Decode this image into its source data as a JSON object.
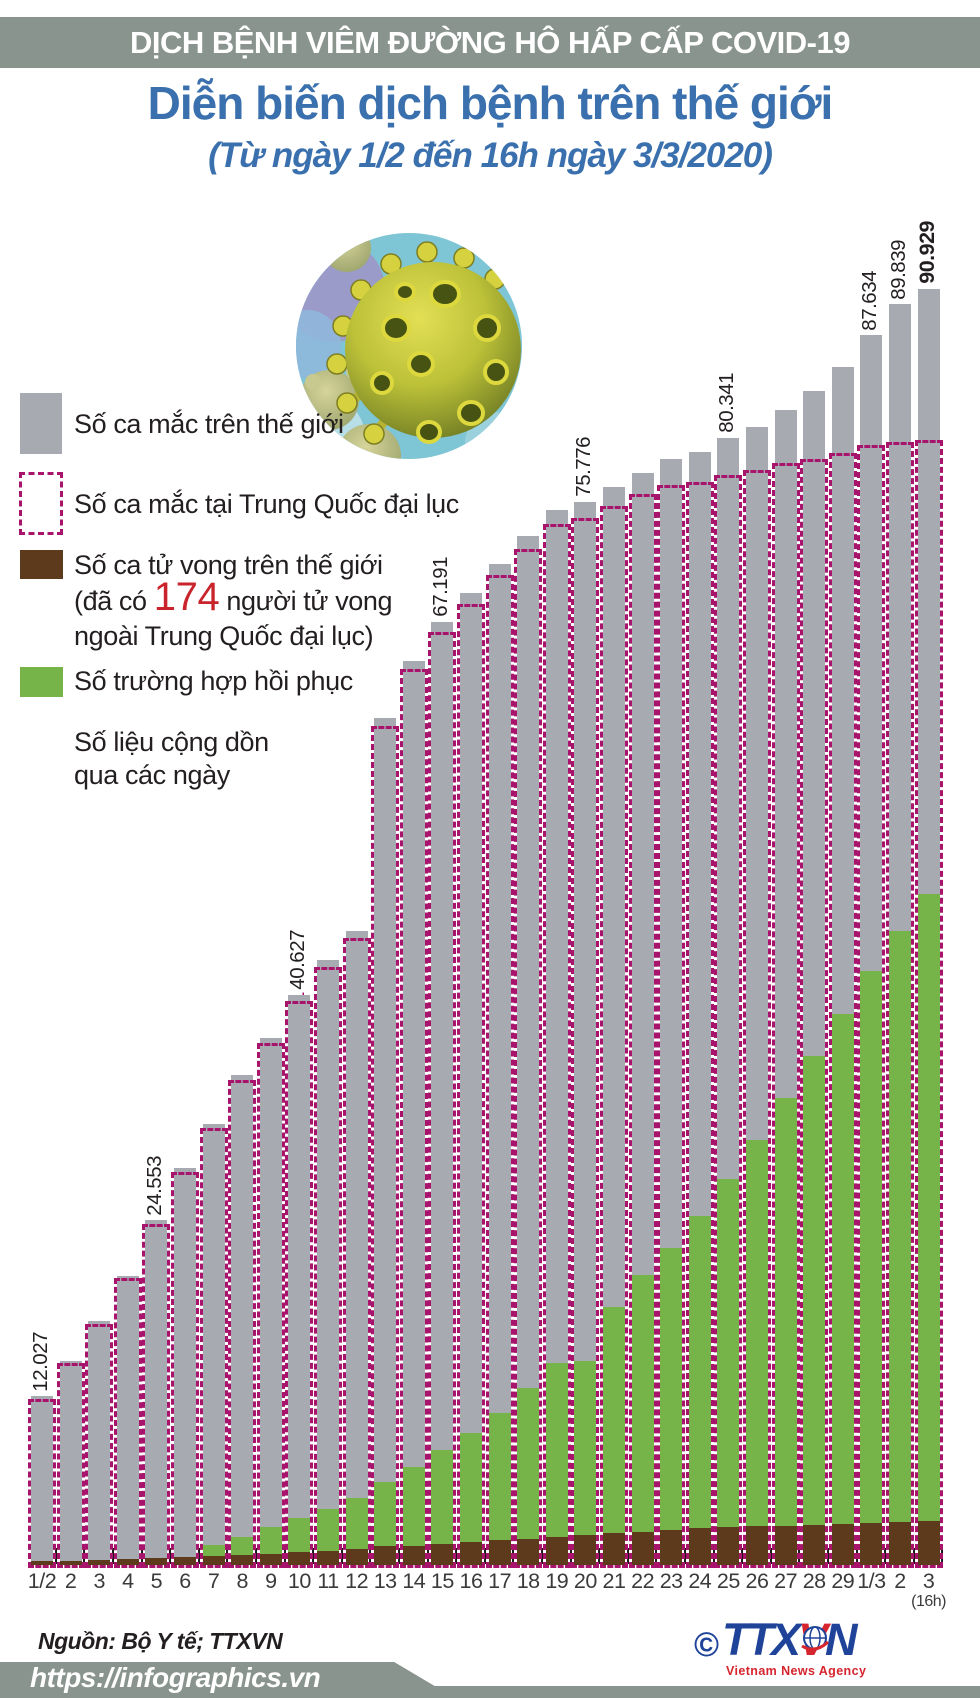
{
  "header": {
    "banner": "DỊCH BỆNH VIÊM ĐƯỜNG HÔ HẤP CẤP COVID-19",
    "title": "Diễn biến dịch bệnh trên thế giới",
    "subtitle": "(Từ ngày 1/2 đến 16h ngày 3/3/2020)"
  },
  "legend": {
    "world_label": "Số ca mắc trên thế giới",
    "china_label": "Số ca mắc tại Trung Quốc đại lục",
    "deaths_label": "Số ca tử vong trên thế giới",
    "deaths_note_pre": "(đã có ",
    "deaths_note_num": "174",
    "deaths_note_post": " người tử vong",
    "deaths_note_line2": "ngoài Trung Quốc đại lục)",
    "recovered_label": "Số trường hợp hồi phục",
    "cumulative_note1": "Số liệu cộng dồn",
    "cumulative_note2": "qua các ngày"
  },
  "footer": {
    "source": "Nguồn: Bộ Y tế; TTXVN",
    "url": "https://infographics.vn",
    "logo": {
      "copyright": "©",
      "name_pre": "TTX",
      "name_v": "V",
      "name_post": "N",
      "tagline": "Vietnam News Agency"
    }
  },
  "colors": {
    "banner_bg": "#8a948e",
    "title_blue": "#3a70ad",
    "bar_gray": "#a7abb1",
    "bar_green": "#76b44a",
    "bar_brown": "#5d3a1b",
    "china_dash": "#a8146c",
    "accent_red": "#c9242b",
    "text_dark": "#231f20",
    "label_white": "#ffffff",
    "ribbon_bg": "#8a948e",
    "logo_blue": "#20439a",
    "logo_red": "#d6252e"
  },
  "chart_data": {
    "type": "bar",
    "title": "Diễn biến dịch bệnh trên thế giới (Từ ngày 1/2 đến 16h ngày 3/3/2020)",
    "note": "Số liệu cộng dồn qua các ngày",
    "legend_position": "left",
    "ylim": [
      0,
      90929
    ],
    "axis_note": "(16h)",
    "categories": [
      "1/2",
      "2",
      "3",
      "4",
      "5",
      "6",
      "7",
      "8",
      "9",
      "10",
      "11",
      "12",
      "13",
      "14",
      "15",
      "16",
      "17",
      "18",
      "19",
      "20",
      "21",
      "22",
      "23",
      "24",
      "25",
      "26",
      "27",
      "28",
      "29",
      "1/3",
      "2",
      "3"
    ],
    "series": [
      {
        "name": "Số ca mắc trên thế giới",
        "role": "world",
        "color": "#a7abb1",
        "values": [
          12027,
          14557,
          17391,
          20630,
          24553,
          28276,
          31439,
          34886,
          37558,
          40627,
          43103,
          45171,
          60328,
          64438,
          67191,
          69267,
          71329,
          73332,
          75204,
          75776,
          76787,
          77794,
          78811,
          79331,
          80341,
          81109,
          82294,
          83652,
          85403,
          87634,
          89839,
          90929
        ]
      },
      {
        "name": "Số ca mắc tại Trung Quốc đại lục",
        "role": "china_outline",
        "color": "#a8146c",
        "values": [
          11860,
          14380,
          17205,
          20438,
          24324,
          28018,
          31161,
          34546,
          37198,
          40171,
          42638,
          44653,
          59804,
          63851,
          66496,
          68500,
          70548,
          72436,
          74185,
          74578,
          75465,
          76288,
          76936,
          77150,
          77660,
          78064,
          78497,
          78824,
          79251,
          79824,
          80026,
          80151
        ]
      },
      {
        "name": "Số ca tử vong trên thế giới",
        "role": "deaths",
        "color": "#5d3a1b",
        "values": [
          259,
          305,
          362,
          426,
          492,
          565,
          638,
          724,
          813,
          910,
          1018,
          1115,
          1369,
          1383,
          1527,
          1669,
          1775,
          1873,
          2009,
          2130,
          2250,
          2360,
          2460,
          2620,
          2706,
          2770,
          2814,
          2872,
          2941,
          2995,
          3061,
          3118
        ]
      },
      {
        "name": "Số trường hợp hồi phục",
        "role": "recovered",
        "color": "#76b44a",
        "values": [
          0,
          0,
          0,
          0,
          0,
          0,
          1400,
          2000,
          2700,
          3324,
          4000,
          4740,
          5900,
          7000,
          8201,
          9400,
          10800,
          12600,
          14400,
          14562,
          18380,
          20670,
          22590,
          24870,
          27476,
          30300,
          33300,
          36300,
          39300,
          42358,
          45182,
          47796
        ]
      }
    ],
    "value_labels": {
      "world": {
        "0": "12.027",
        "4": "24.553",
        "9": "40.627",
        "14": "67.191",
        "19": "75.776",
        "24": "80.341",
        "29": "87.634",
        "30": "89.839",
        "31": "90.929"
      },
      "china": {
        "0": "11.860",
        "4": "24.324",
        "9": "40.171",
        "14": "66.496",
        "19": "74.578",
        "24": "77.660",
        "29": "79.824",
        "30": "80.026",
        "31": "80.151"
      },
      "deaths": {
        "0": "259",
        "4": "492",
        "9": "910",
        "14": "1.527",
        "19": "2.130",
        "24": "2.706",
        "29": "2.995",
        "30": "3.061",
        "31": "3.118"
      },
      "recovered": {
        "9": "3.324",
        "14": "8.201",
        "19": "14.562",
        "24": "27.476",
        "29": "42.358",
        "30": "45.182",
        "31": "47.796"
      }
    }
  }
}
